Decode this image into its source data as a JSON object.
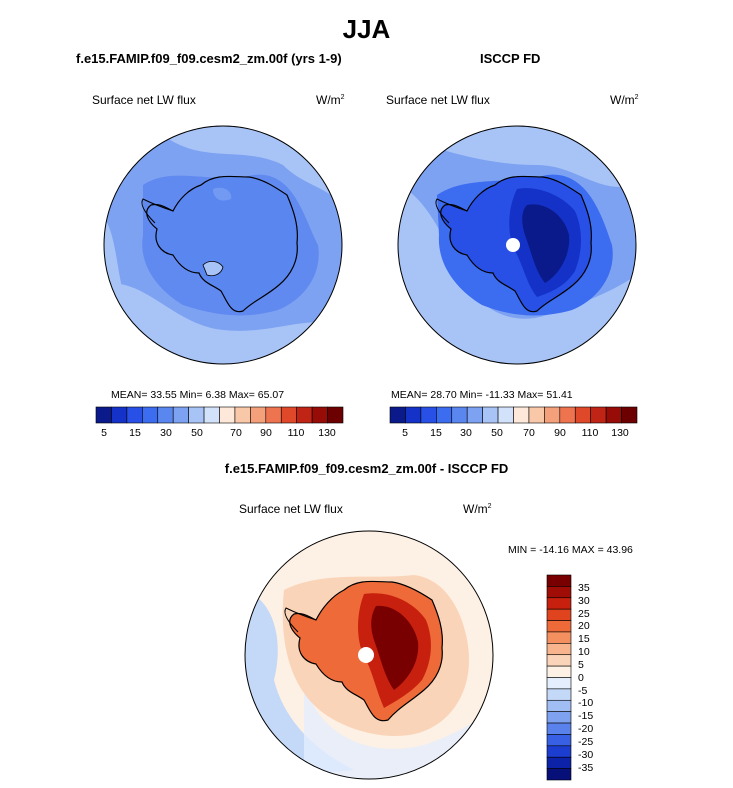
{
  "figure": {
    "season": "JJA",
    "variable": "Surface net LW flux",
    "units_base": "W/m",
    "units_exp": "2"
  },
  "panels": {
    "model": {
      "title": "f.e15.FAMIP.f09_f09.cesm2_zm.00f (yrs 1-9)",
      "stats_text": "MEAN=  33.55  Min=    6.38  Max=  65.07"
    },
    "obs": {
      "title": "ISCCP FD",
      "stats_text": "MEAN=  28.70  Min= -11.33  Max=  51.41"
    },
    "diff": {
      "title": "f.e15.FAMIP.f09_f09.cesm2_zm.00f - ISCCP FD",
      "stats_text": "MIN = -14.16  MAX =  43.96"
    }
  },
  "colorbar_abs": {
    "colors": [
      "#0a1a8a",
      "#1432c8",
      "#2850e6",
      "#3c6cf0",
      "#5a86f0",
      "#7ea2f2",
      "#a8c4f6",
      "#d2e2fa",
      "#fde8da",
      "#f8c8a8",
      "#f4a07a",
      "#ee7450",
      "#e0482a",
      "#c02414",
      "#980c08",
      "#6c0000"
    ],
    "tick_labels": [
      "5",
      "15",
      "30",
      "50",
      "70",
      "90",
      "110",
      "130"
    ]
  },
  "colorbar_diff": {
    "colors_top_to_bottom": [
      "#780000",
      "#a00c06",
      "#c8200e",
      "#e0441e",
      "#ee6a38",
      "#f49060",
      "#f8b48c",
      "#fad4b8",
      "#fdf0e4",
      "#e4eefc",
      "#c4d8f8",
      "#a0bef4",
      "#7ea2f0",
      "#5a82ec",
      "#3860e4",
      "#1c3ed0",
      "#0c22a8",
      "#061078"
    ],
    "tick_labels_top_to_bottom": [
      "35",
      "30",
      "25",
      "20",
      "15",
      "10",
      "5",
      "0",
      "-5",
      "-10",
      "-15",
      "-20",
      "-25",
      "-30",
      "-35"
    ]
  },
  "map_colors": {
    "ocean_light": "#a8c4f6",
    "ocean_mid": "#7ea2f2",
    "ocean_dark": "#5a86f0",
    "continent_model": "#5a86f0",
    "continent_obs_deep": "#0a1a8a",
    "diff_max": "#980c08",
    "diff_pos": "#ee7450",
    "diff_weak": "#fde8da",
    "diff_neg": "#d2e2fa",
    "coast": "#000000"
  }
}
